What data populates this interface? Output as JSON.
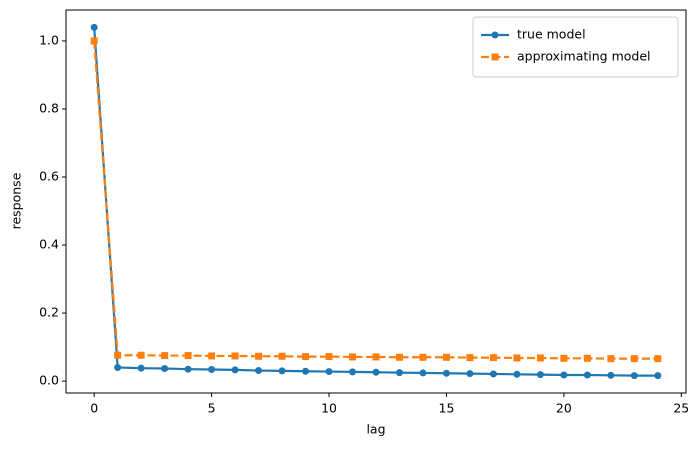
{
  "chart_data": {
    "type": "line",
    "xlabel": "lag",
    "ylabel": "response",
    "x": [
      0,
      1,
      2,
      3,
      4,
      5,
      6,
      7,
      8,
      9,
      10,
      11,
      12,
      13,
      14,
      15,
      16,
      17,
      18,
      19,
      20,
      21,
      22,
      23,
      24
    ],
    "series": [
      {
        "name": "true model",
        "color": "#1f77b4",
        "marker": "circle",
        "linestyle": "solid",
        "values": [
          1.04,
          0.04,
          0.038,
          0.037,
          0.035,
          0.034,
          0.033,
          0.031,
          0.03,
          0.029,
          0.028,
          0.027,
          0.026,
          0.025,
          0.024,
          0.023,
          0.022,
          0.021,
          0.02,
          0.019,
          0.018,
          0.018,
          0.017,
          0.016,
          0.016
        ]
      },
      {
        "name": "approximating model",
        "color": "#ff7f0e",
        "marker": "square",
        "linestyle": "dashed",
        "values": [
          1.0,
          0.076,
          0.076,
          0.075,
          0.075,
          0.074,
          0.074,
          0.073,
          0.073,
          0.072,
          0.072,
          0.071,
          0.071,
          0.07,
          0.07,
          0.07,
          0.069,
          0.069,
          0.068,
          0.068,
          0.067,
          0.067,
          0.066,
          0.066,
          0.066
        ]
      }
    ],
    "xlim": [
      -1.2,
      25.2
    ],
    "ylim": [
      -0.035,
      1.091
    ],
    "xticks": [
      0,
      5,
      10,
      15,
      20,
      25
    ],
    "yticks": [
      {
        "value": 0,
        "label": "0.0"
      },
      0.2,
      0.4,
      0.6,
      0.8,
      {
        "value": 1,
        "label": "1.0"
      }
    ],
    "legend": "upper right",
    "grid": false
  }
}
